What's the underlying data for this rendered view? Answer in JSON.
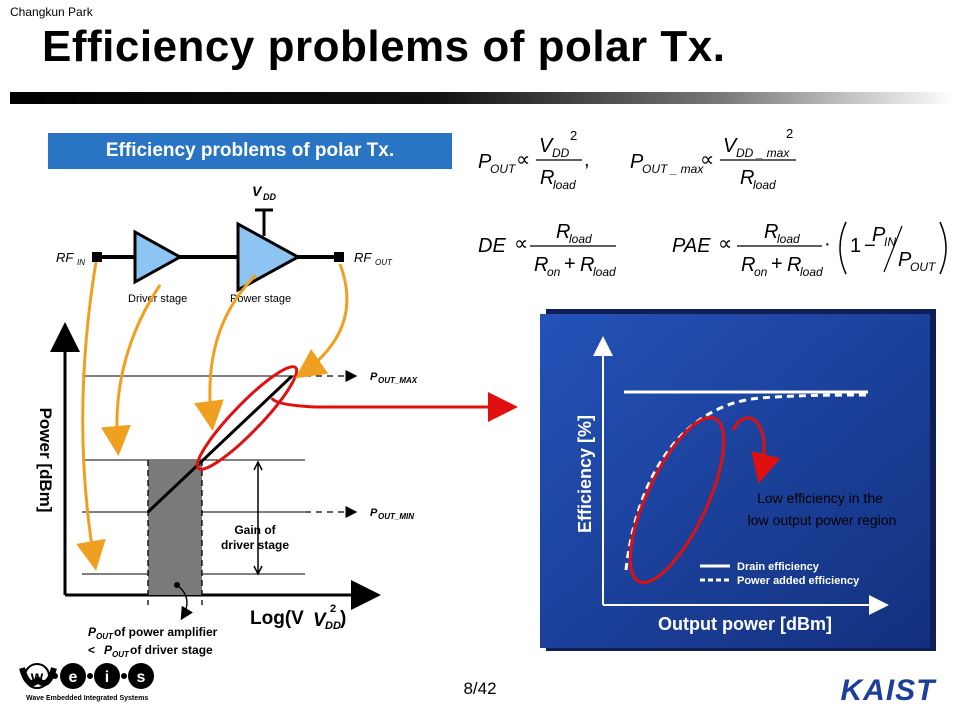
{
  "header": {
    "author": "Changkun Park",
    "title": "Efficiency problems of polar Tx."
  },
  "section_title": "Efficiency problems of polar Tx.",
  "equations": {
    "pout_lhs": "P",
    "pout_sub": "OUT",
    "vdd": "V",
    "vdd_sub": "DD",
    "sq": "2",
    "rload": "R",
    "rload_sub": "load",
    "pmax_sub": "OUT _ max",
    "vddmax_sub": "DD _ max",
    "de": "DE",
    "ron": "R",
    "ron_sub": "on",
    "pae": "PAE",
    "one": "1",
    "pin": "P",
    "pin_sub": "IN",
    "prop": "∝",
    "plus": "+",
    "minus": "−",
    "dot": "·",
    "comma": ","
  },
  "circuit": {
    "vdd_label": "V",
    "vdd_sub": "DD",
    "rf_in": "RF",
    "rf_in_sub": "IN",
    "rf_out": "RF",
    "rf_out_sub": "OUT",
    "driver_stage": "Driver stage",
    "power_stage": "Power stage"
  },
  "power_plot": {
    "y_label": "Power [dBm]",
    "x_label_main": "Log(V",
    "x_label_sub": "DD",
    "x_label_sup": "2",
    "x_label_close": ")",
    "pout_max": "P",
    "pout_max_sub": "OUT_MAX",
    "pout_min": "P",
    "pout_min_sub": "OUT_MIN",
    "gain_line1": "Gain of",
    "gain_line2": "driver stage",
    "note_line1_p": "P",
    "note_line1_sub": "OUT",
    "note_line1_rest": " of power amplifier",
    "note_line2_pre": "< ",
    "note_line2_p": "P",
    "note_line2_sub": "OUT",
    "note_line2_rest": " of driver stage"
  },
  "eff_plot": {
    "y_label": "Efficiency [%]",
    "x_label": "Output power [dBm]",
    "annotation_line1": "Low efficiency in the",
    "annotation_line2": "low output power region",
    "legend_drain": "Drain efficiency",
    "legend_pae": "Power added efficiency"
  },
  "footer": {
    "page": "8/42",
    "logo_left_letters": [
      "w",
      "e",
      "i",
      "s"
    ],
    "logo_left_tagline": "Wave Embedded Integrated Systems",
    "logo_right": "KAIST"
  },
  "colors": {
    "title_box": "#2a74c4",
    "panel_blue": "#1c3f9a",
    "arrow_red": "#e01010",
    "curve_orange": "#f0a020",
    "amp_fill": "#8ec4f2"
  }
}
